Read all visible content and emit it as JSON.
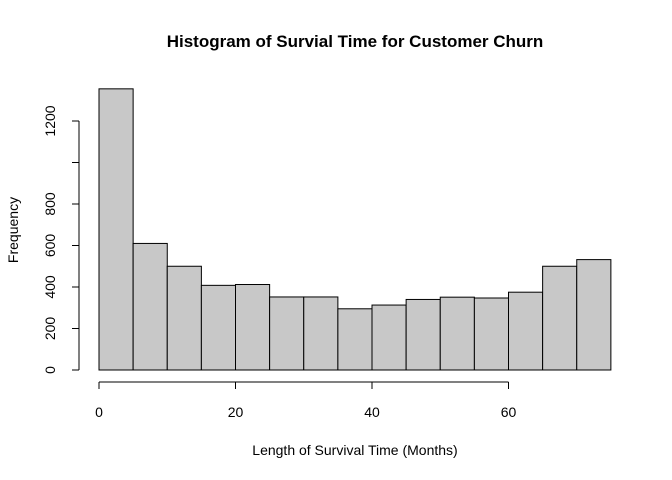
{
  "chart_data": {
    "type": "bar",
    "title": "Histogram of Survial Time for Customer Churn",
    "xlabel": "Length of Survival Time (Months)",
    "ylabel": "Frequency",
    "bins": [
      {
        "start": 0,
        "end": 5,
        "count": 1355
      },
      {
        "start": 5,
        "end": 10,
        "count": 610
      },
      {
        "start": 10,
        "end": 15,
        "count": 500
      },
      {
        "start": 15,
        "end": 20,
        "count": 408
      },
      {
        "start": 20,
        "end": 25,
        "count": 412
      },
      {
        "start": 25,
        "end": 30,
        "count": 352
      },
      {
        "start": 30,
        "end": 35,
        "count": 352
      },
      {
        "start": 35,
        "end": 40,
        "count": 295
      },
      {
        "start": 40,
        "end": 45,
        "count": 313
      },
      {
        "start": 45,
        "end": 50,
        "count": 340
      },
      {
        "start": 50,
        "end": 55,
        "count": 351
      },
      {
        "start": 55,
        "end": 60,
        "count": 347
      },
      {
        "start": 60,
        "end": 65,
        "count": 375
      },
      {
        "start": 65,
        "end": 70,
        "count": 500
      },
      {
        "start": 70,
        "end": 75,
        "count": 532
      }
    ],
    "xlim": [
      0,
      75
    ],
    "ylim": [
      0,
      1400
    ],
    "x_ticks": [
      0,
      20,
      40,
      60
    ],
    "y_ticks": [
      0,
      200,
      400,
      600,
      800,
      1000,
      1200
    ],
    "y_tick_labels": [
      "0",
      "200",
      "400",
      "600",
      "800",
      "",
      "1200"
    ],
    "grid": false,
    "legend": "none",
    "bar_color": "#c8c8c8",
    "edge_color": "#000000"
  }
}
